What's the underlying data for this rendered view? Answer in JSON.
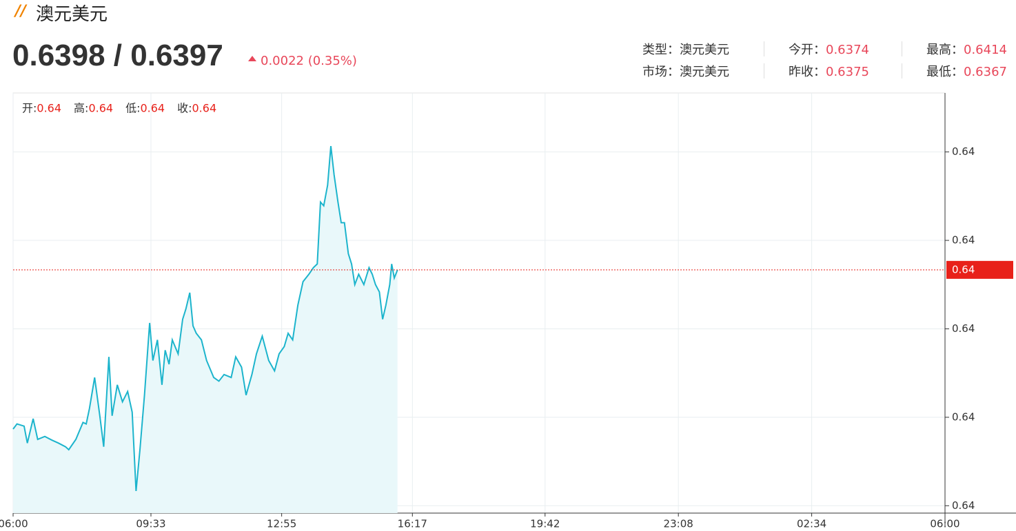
{
  "header": {
    "title": "澳元美元",
    "price": "0.6398 / 0.6397",
    "change": "0.0022 (0.35%)",
    "info": [
      {
        "label": "类型：",
        "value": "澳元美元"
      },
      {
        "label": "今开：",
        "value": "0.6374"
      },
      {
        "label": "最高：",
        "value": "0.6414"
      },
      {
        "label": "市场：",
        "value": "澳元美元"
      },
      {
        "label": "昨收：",
        "value": "0.6375"
      },
      {
        "label": "最低：",
        "value": "0.6367"
      }
    ]
  },
  "chart_data": {
    "type": "area",
    "ohlc_legend": [
      {
        "label": "开:",
        "value": "0.64"
      },
      {
        "label": "高:",
        "value": "0.64"
      },
      {
        "label": "低:",
        "value": "0.64"
      },
      {
        "label": "收:",
        "value": "0.64"
      }
    ],
    "color": "#1cb4cc",
    "fill": "#e9f8fa",
    "x": [
      0,
      6,
      17,
      22,
      31,
      38,
      49,
      60,
      70,
      81,
      86,
      97,
      108,
      113,
      118,
      126,
      134,
      140,
      148,
      153,
      161,
      169,
      177,
      184,
      190,
      196,
      203,
      211,
      216,
      223,
      230,
      235,
      241,
      246,
      255,
      262,
      267,
      273,
      278,
      283,
      291,
      299,
      310,
      318,
      326,
      337,
      344,
      353,
      360,
      369,
      376,
      385,
      395,
      404,
      411,
      419,
      425,
      432,
      440,
      448,
      457,
      464,
      470,
      475,
      480,
      486,
      491,
      496,
      502,
      507,
      512,
      518,
      523,
      528,
      534,
      542,
      550,
      555,
      560,
      566,
      571,
      576,
      582,
      585,
      589,
      594
    ],
    "values": [
      0.63754,
      0.63761,
      0.63758,
      0.63735,
      0.63768,
      0.6374,
      0.63744,
      0.63739,
      0.63735,
      0.6373,
      0.63726,
      0.6374,
      0.63763,
      0.63761,
      0.63782,
      0.63824,
      0.63772,
      0.6373,
      0.63852,
      0.63772,
      0.63814,
      0.63791,
      0.63805,
      0.63777,
      0.6367,
      0.63726,
      0.638,
      0.63898,
      0.63847,
      0.63875,
      0.63814,
      0.63861,
      0.63842,
      0.63875,
      0.63856,
      0.63903,
      0.63917,
      0.63939,
      0.63894,
      0.63884,
      0.63875,
      0.63847,
      0.63824,
      0.63819,
      0.63828,
      0.63824,
      0.63852,
      0.63838,
      0.638,
      0.63828,
      0.63856,
      0.6388,
      0.63847,
      0.63833,
      0.63856,
      0.63866,
      0.63884,
      0.63875,
      0.63922,
      0.63954,
      0.63964,
      0.63973,
      0.63978,
      0.64062,
      0.64057,
      0.64085,
      0.64138,
      0.64099,
      0.64062,
      0.64034,
      0.64034,
      0.63992,
      0.63978,
      0.6395,
      0.63964,
      0.6395,
      0.63973,
      0.63964,
      0.6395,
      0.6394,
      0.63903,
      0.63922,
      0.6395,
      0.63978,
      0.63959,
      0.6397
    ],
    "current": {
      "value": 0.6397,
      "label": "0.64",
      "color": "#e8211a"
    },
    "xlim": [
      0,
      1440
    ],
    "xticks": [
      {
        "value": 0,
        "label": "06:00"
      },
      {
        "value": 213,
        "label": "09:33"
      },
      {
        "value": 415,
        "label": "12:55"
      },
      {
        "value": 617,
        "label": "16:17"
      },
      {
        "value": 822,
        "label": "19:42"
      },
      {
        "value": 1028,
        "label": "23:08"
      },
      {
        "value": 1234,
        "label": "02:34"
      },
      {
        "value": 1440,
        "label": "06:00"
      }
    ],
    "ylim": [
      0.6364,
      0.6421
    ],
    "yticks": [
      {
        "value": 0.6365,
        "label": "0.64"
      },
      {
        "value": 0.6377,
        "label": "0.64"
      },
      {
        "value": 0.6389,
        "label": "0.64"
      },
      {
        "value": 0.6401,
        "label": "0.64"
      },
      {
        "value": 0.6413,
        "label": "0.64"
      }
    ],
    "grid": true
  }
}
